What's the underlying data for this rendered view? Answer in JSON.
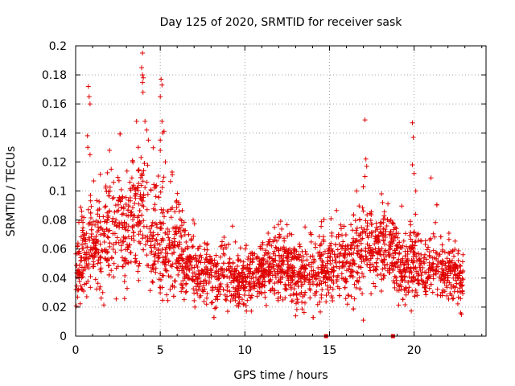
{
  "chart_data": {
    "type": "scatter",
    "title": "Day 125 of 2020, SRMTID for receiver sask",
    "xlabel": "GPS time / hours",
    "ylabel": "SRMTID / TECUs",
    "xlim": [
      0,
      24.25
    ],
    "ylim": [
      0,
      0.2
    ],
    "xticks": [
      0,
      5,
      10,
      15,
      20
    ],
    "xtick_labels": [
      "0",
      "5",
      "10",
      "15",
      "20"
    ],
    "yticks": [
      0,
      0.02,
      0.04,
      0.06,
      0.08,
      0.1,
      0.12,
      0.14,
      0.16,
      0.18,
      0.2
    ],
    "ytick_labels": [
      "0",
      "0.02",
      "0.04",
      "0.06",
      "0.08",
      "0.1",
      "0.12",
      "0.14",
      "0.16",
      "0.18",
      "0.2"
    ],
    "grid": true,
    "marker": "plus",
    "series_color": "#e00000",
    "zero_markers_x": [
      14.8,
      18.75
    ],
    "trend": {
      "x": [
        0,
        0.5,
        1,
        1.5,
        2,
        2.5,
        3,
        3.5,
        4,
        4.5,
        5,
        5.5,
        6,
        6.5,
        7,
        7.5,
        8,
        9,
        10,
        11,
        12,
        13,
        14,
        15,
        16,
        17,
        18,
        18.6,
        19.2,
        20,
        21,
        22,
        22.8
      ],
      "y": [
        0.045,
        0.055,
        0.065,
        0.06,
        0.07,
        0.075,
        0.07,
        0.085,
        0.09,
        0.07,
        0.068,
        0.06,
        0.065,
        0.05,
        0.045,
        0.042,
        0.042,
        0.04,
        0.038,
        0.045,
        0.05,
        0.045,
        0.045,
        0.05,
        0.05,
        0.06,
        0.065,
        0.06,
        0.045,
        0.05,
        0.048,
        0.045,
        0.04
      ]
    },
    "spread": {
      "x": [
        0,
        1,
        2,
        3,
        4,
        5,
        6,
        7,
        8,
        10,
        12,
        14,
        16,
        17,
        18,
        19,
        20,
        21,
        22,
        23
      ],
      "y": [
        0.012,
        0.016,
        0.018,
        0.02,
        0.022,
        0.02,
        0.015,
        0.01,
        0.01,
        0.01,
        0.011,
        0.011,
        0.013,
        0.014,
        0.013,
        0.012,
        0.012,
        0.011,
        0.01,
        0.01
      ]
    },
    "highlights": [
      {
        "x": 0.75,
        "y": 0.172
      },
      {
        "x": 0.8,
        "y": 0.165
      },
      {
        "x": 0.85,
        "y": 0.16
      },
      {
        "x": 0.7,
        "y": 0.138
      },
      {
        "x": 0.72,
        "y": 0.13
      },
      {
        "x": 0.85,
        "y": 0.125
      },
      {
        "x": 2.0,
        "y": 0.128
      },
      {
        "x": 2.1,
        "y": 0.115
      },
      {
        "x": 3.6,
        "y": 0.148
      },
      {
        "x": 3.7,
        "y": 0.13
      },
      {
        "x": 3.95,
        "y": 0.195
      },
      {
        "x": 3.9,
        "y": 0.185
      },
      {
        "x": 3.95,
        "y": 0.18
      },
      {
        "x": 4.0,
        "y": 0.178
      },
      {
        "x": 3.98,
        "y": 0.168
      },
      {
        "x": 4.1,
        "y": 0.148
      },
      {
        "x": 4.2,
        "y": 0.142
      },
      {
        "x": 4.3,
        "y": 0.135
      },
      {
        "x": 5.05,
        "y": 0.177
      },
      {
        "x": 5.1,
        "y": 0.173
      },
      {
        "x": 5.0,
        "y": 0.165
      },
      {
        "x": 5.1,
        "y": 0.148
      },
      {
        "x": 5.15,
        "y": 0.14
      },
      {
        "x": 5.0,
        "y": 0.135
      },
      {
        "x": 5.0,
        "y": 0.128
      },
      {
        "x": 5.3,
        "y": 0.12
      },
      {
        "x": 5.7,
        "y": 0.113
      },
      {
        "x": 17.1,
        "y": 0.149
      },
      {
        "x": 17.15,
        "y": 0.122
      },
      {
        "x": 17.2,
        "y": 0.117
      },
      {
        "x": 17.1,
        "y": 0.11
      },
      {
        "x": 19.9,
        "y": 0.147
      },
      {
        "x": 19.95,
        "y": 0.137
      },
      {
        "x": 19.9,
        "y": 0.118
      },
      {
        "x": 20.0,
        "y": 0.112
      },
      {
        "x": 20.1,
        "y": 0.1
      },
      {
        "x": 21.0,
        "y": 0.109
      },
      {
        "x": 17.0,
        "y": 0.011
      },
      {
        "x": 13.0,
        "y": 0.014
      },
      {
        "x": 22.8,
        "y": 0.015
      },
      {
        "x": 22.75,
        "y": 0.016
      },
      {
        "x": 16.6,
        "y": 0.1
      }
    ],
    "point_count": 2600,
    "x_range": [
      0,
      22.9
    ]
  }
}
